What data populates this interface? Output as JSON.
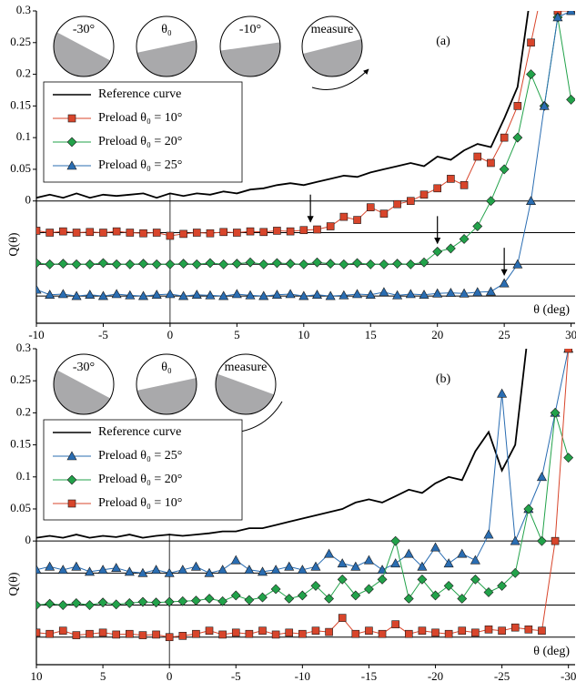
{
  "chart_data": [
    {
      "type": "line",
      "panel_label": "(a)",
      "insets": [
        "-30°",
        "θ₀",
        "-10°",
        "measure"
      ],
      "xlabel": "θ (deg)",
      "ylabel": "Q(θ)",
      "legend": "upper left",
      "xlim": [
        -10,
        30.3
      ],
      "xticks": [
        -10,
        -5,
        0,
        5,
        10,
        15,
        20,
        25,
        30
      ],
      "ylim": [
        -0.193,
        0.3
      ],
      "yticks": [
        0,
        0.05,
        0.1,
        0.15,
        0.2,
        0.25,
        0.3
      ],
      "baselines": [
        0,
        -0.05,
        -0.1,
        -0.15
      ],
      "arrows_x": [
        10.5,
        20,
        25
      ],
      "x": [
        -10,
        -9,
        -8,
        -7,
        -6,
        -5,
        -4,
        -3,
        -2,
        -1,
        0,
        1,
        2,
        3,
        4,
        5,
        6,
        7,
        8,
        9,
        10,
        11,
        12,
        13,
        14,
        15,
        16,
        17,
        18,
        19,
        20,
        21,
        22,
        23,
        24,
        25,
        26,
        27,
        28,
        29,
        30
      ],
      "series": [
        {
          "name": "Reference curve",
          "color": "#000000",
          "marker": "none",
          "values": [
            0.005,
            0.01,
            0.005,
            0.012,
            0.005,
            0.01,
            0.008,
            0.01,
            0.012,
            0.005,
            0.012,
            0.008,
            0.012,
            0.01,
            0.015,
            0.012,
            0.018,
            0.02,
            0.025,
            0.028,
            0.025,
            0.03,
            0.035,
            0.04,
            0.038,
            0.045,
            0.05,
            0.055,
            0.06,
            0.055,
            0.07,
            0.065,
            0.08,
            0.09,
            0.085,
            0.13,
            0.18,
            0.33,
            null,
            null,
            null
          ]
        },
        {
          "name": "Preload θ₀ = 10°",
          "color": "#d8452b",
          "marker": "square",
          "values": [
            -0.047,
            -0.05,
            -0.048,
            -0.05,
            -0.049,
            -0.05,
            -0.048,
            -0.05,
            -0.051,
            -0.05,
            -0.055,
            -0.052,
            -0.05,
            -0.051,
            -0.049,
            -0.05,
            -0.048,
            -0.049,
            -0.047,
            -0.048,
            -0.046,
            -0.045,
            -0.04,
            -0.025,
            -0.03,
            -0.01,
            -0.02,
            -0.005,
            0.0,
            0.01,
            0.02,
            0.035,
            0.025,
            0.07,
            0.06,
            0.1,
            0.15,
            0.25,
            0.35,
            0.3,
            0.3
          ]
        },
        {
          "name": "Preload θ₀ = 20°",
          "color": "#22a24a",
          "marker": "diamond",
          "values": [
            -0.098,
            -0.1,
            -0.099,
            -0.1,
            -0.1,
            -0.098,
            -0.1,
            -0.1,
            -0.099,
            -0.1,
            -0.1,
            -0.099,
            -0.1,
            -0.098,
            -0.1,
            -0.099,
            -0.097,
            -0.1,
            -0.098,
            -0.099,
            -0.1,
            -0.097,
            -0.099,
            -0.1,
            -0.098,
            -0.1,
            -0.1,
            -0.099,
            -0.1,
            -0.097,
            -0.08,
            -0.075,
            -0.06,
            -0.04,
            0.0,
            0.05,
            0.1,
            0.2,
            0.15,
            0.29,
            0.16
          ]
        },
        {
          "name": "Preload θ₀ = 25°",
          "color": "#2a6db2",
          "marker": "triangle",
          "values": [
            -0.14,
            -0.148,
            -0.147,
            -0.15,
            -0.148,
            -0.15,
            -0.147,
            -0.149,
            -0.15,
            -0.148,
            -0.147,
            -0.15,
            -0.148,
            -0.149,
            -0.15,
            -0.147,
            -0.149,
            -0.15,
            -0.148,
            -0.147,
            -0.15,
            -0.148,
            -0.15,
            -0.149,
            -0.147,
            -0.148,
            -0.144,
            -0.149,
            -0.147,
            -0.148,
            -0.146,
            -0.145,
            -0.146,
            -0.144,
            -0.143,
            -0.13,
            -0.1,
            0.0,
            0.15,
            0.29,
            0.3
          ]
        }
      ]
    },
    {
      "type": "line",
      "panel_label": "(b)",
      "insets": [
        "-30°",
        "θ₀",
        "measure"
      ],
      "xlabel": "θ (deg)",
      "ylabel": "Q(θ)",
      "legend": "upper left",
      "xlim": [
        10,
        -30.5
      ],
      "xticks": [
        10,
        5,
        0,
        -5,
        -10,
        -15,
        -20,
        -25,
        -30
      ],
      "ylim": [
        -0.193,
        0.3
      ],
      "yticks": [
        0,
        0.05,
        0.1,
        0.15,
        0.2,
        0.25,
        0.3
      ],
      "baselines": [
        0,
        -0.05,
        -0.1,
        -0.15
      ],
      "arrows_x": [],
      "x": [
        10,
        9,
        8,
        7,
        6,
        5,
        4,
        3,
        2,
        1,
        0,
        -1,
        -2,
        -3,
        -4,
        -5,
        -6,
        -7,
        -8,
        -9,
        -10,
        -11,
        -12,
        -13,
        -14,
        -15,
        -16,
        -17,
        -18,
        -19,
        -20,
        -21,
        -22,
        -23,
        -24,
        -25,
        -26,
        -27,
        -28,
        -29,
        -30
      ],
      "series": [
        {
          "name": "Reference curve",
          "color": "#000000",
          "marker": "none",
          "values": [
            0.005,
            0.008,
            0.005,
            0.01,
            0.005,
            0.008,
            0.006,
            0.01,
            0.005,
            0.008,
            0.01,
            0.008,
            0.01,
            0.012,
            0.015,
            0.015,
            0.02,
            0.02,
            0.025,
            0.03,
            0.035,
            0.04,
            0.045,
            0.05,
            0.06,
            0.065,
            0.06,
            0.07,
            0.08,
            0.075,
            0.09,
            0.1,
            0.095,
            0.14,
            0.17,
            0.11,
            0.15,
            0.33,
            null,
            null,
            null
          ]
        },
        {
          "name": "Preload θ₀ = 25°",
          "color": "#2a6db2",
          "marker": "triangle",
          "values": [
            -0.045,
            -0.04,
            -0.045,
            -0.04,
            -0.048,
            -0.045,
            -0.042,
            -0.048,
            -0.05,
            -0.045,
            -0.05,
            -0.045,
            -0.04,
            -0.05,
            -0.045,
            -0.03,
            -0.045,
            -0.048,
            -0.045,
            -0.04,
            -0.045,
            -0.04,
            -0.02,
            -0.035,
            -0.04,
            -0.03,
            -0.045,
            -0.035,
            -0.02,
            -0.04,
            -0.01,
            -0.035,
            -0.02,
            -0.03,
            0.01,
            0.23,
            0.0,
            0.05,
            0.1,
            0.2,
            0.3
          ]
        },
        {
          "name": "Preload θ₀ = 20°",
          "color": "#22a24a",
          "marker": "diamond",
          "values": [
            -0.1,
            -0.098,
            -0.1,
            -0.097,
            -0.1,
            -0.096,
            -0.099,
            -0.097,
            -0.095,
            -0.096,
            -0.095,
            -0.094,
            -0.093,
            -0.09,
            -0.094,
            -0.085,
            -0.092,
            -0.088,
            -0.075,
            -0.09,
            -0.085,
            -0.07,
            -0.09,
            -0.06,
            -0.085,
            -0.075,
            -0.06,
            0.0,
            -0.09,
            -0.06,
            -0.085,
            -0.07,
            -0.09,
            -0.06,
            -0.08,
            -0.07,
            -0.05,
            0.05,
            0.0,
            0.2,
            0.13
          ]
        },
        {
          "name": "Preload θ₀ = 10°",
          "color": "#d8452b",
          "marker": "square",
          "values": [
            -0.143,
            -0.145,
            -0.14,
            -0.147,
            -0.145,
            -0.143,
            -0.146,
            -0.145,
            -0.147,
            -0.146,
            -0.15,
            -0.148,
            -0.145,
            -0.14,
            -0.146,
            -0.143,
            -0.145,
            -0.14,
            -0.146,
            -0.143,
            -0.145,
            -0.14,
            -0.142,
            -0.12,
            -0.145,
            -0.14,
            -0.145,
            -0.13,
            -0.145,
            -0.14,
            -0.143,
            -0.145,
            -0.14,
            -0.143,
            -0.138,
            -0.14,
            -0.135,
            -0.138,
            -0.14,
            0.0,
            0.3
          ]
        }
      ]
    }
  ]
}
